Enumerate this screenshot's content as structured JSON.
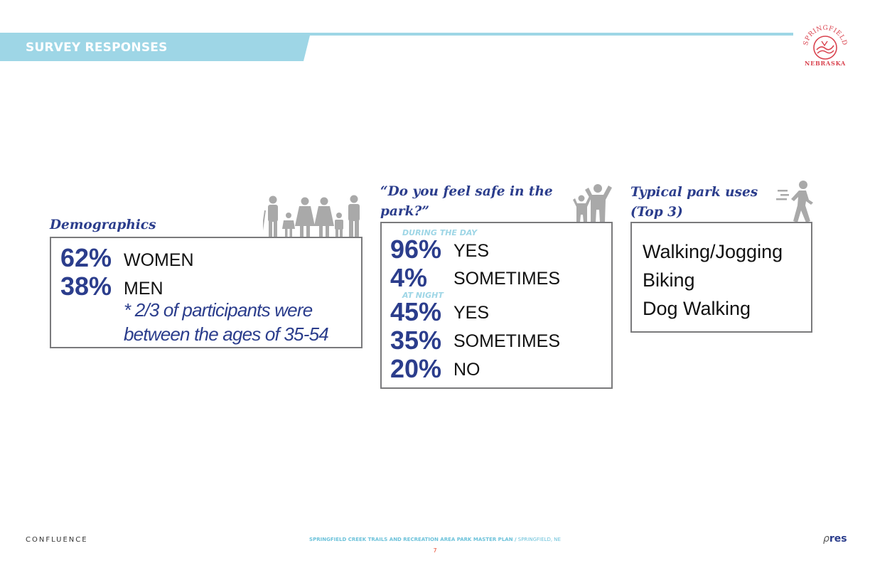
{
  "header": {
    "title": "SURVEY RESPONSES"
  },
  "logo": {
    "top": "SPRINGFIELD",
    "bottom": "NEBRASKA",
    "accent": "#d9434f"
  },
  "demographics": {
    "heading": "Demographics",
    "rows": [
      {
        "pct": "62%",
        "label": "WOMEN"
      },
      {
        "pct": "38%",
        "label": "MEN"
      }
    ],
    "note_line1": "* 2/3 of participants were",
    "note_line2": "between the ages of 35-54"
  },
  "safety": {
    "heading_line1": "“Do you feel safe in the",
    "heading_line2": "park?”",
    "day_label": "DURING THE DAY",
    "night_label": "AT NIGHT",
    "day": [
      {
        "pct": "96%",
        "label": "YES"
      },
      {
        "pct": "4%",
        "label": "SOMETIMES"
      }
    ],
    "night": [
      {
        "pct": "45%",
        "label": "YES"
      },
      {
        "pct": "35%",
        "label": "SOMETIMES"
      },
      {
        "pct": "20%",
        "label": "NO"
      }
    ]
  },
  "uses": {
    "heading_line1": "Typical park uses",
    "heading_line2": "(Top 3)",
    "items": [
      "Walking/Jogging",
      "Biking",
      "Dog Walking"
    ]
  },
  "footer": {
    "left": "CONFLUENCE",
    "plan": "SPRINGFIELD CREEK TRAILS AND RECREATION AREA PARK MASTER PLAN /",
    "place": " SPRINGFIELD, NE",
    "page": "7",
    "right": "res"
  },
  "colors": {
    "accent_blue": "#9ed6e6",
    "navy": "#2b3d8c",
    "icon_gray": "#a9a9a9",
    "box_border": "#7a7a7c"
  }
}
